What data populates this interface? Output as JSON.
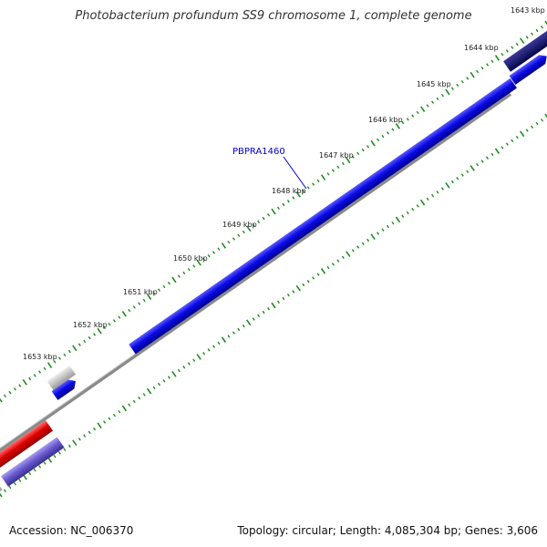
{
  "title": "Photobacterium profundum SS9 chromosome 1, complete genome",
  "footer": {
    "accession": "Accession: NC_006370",
    "summary": "Topology: circular; Length: 4,085,304 bp; Genes: 3,606"
  },
  "colors": {
    "forward_gene": "#0a0ae6",
    "forward_gene_dark": "#0a0a60",
    "reverse_gene_red": "#e00000",
    "reverse_gene_purple": "#6a5ad0",
    "other_gene": "#bdbdbd",
    "backbone": "#8a8a8a",
    "tick": "#1f8a1f",
    "label_line": "#0000cc"
  },
  "ticks": [
    "1643 kbp",
    "1644 kbp",
    "1645 kbp",
    "1646 kbp",
    "1647 kbp",
    "1648 kbp",
    "1649 kbp",
    "1650 kbp",
    "1651 kbp",
    "1652 kbp",
    "1653 kbp"
  ],
  "gene_label": "PBPRA1460"
}
